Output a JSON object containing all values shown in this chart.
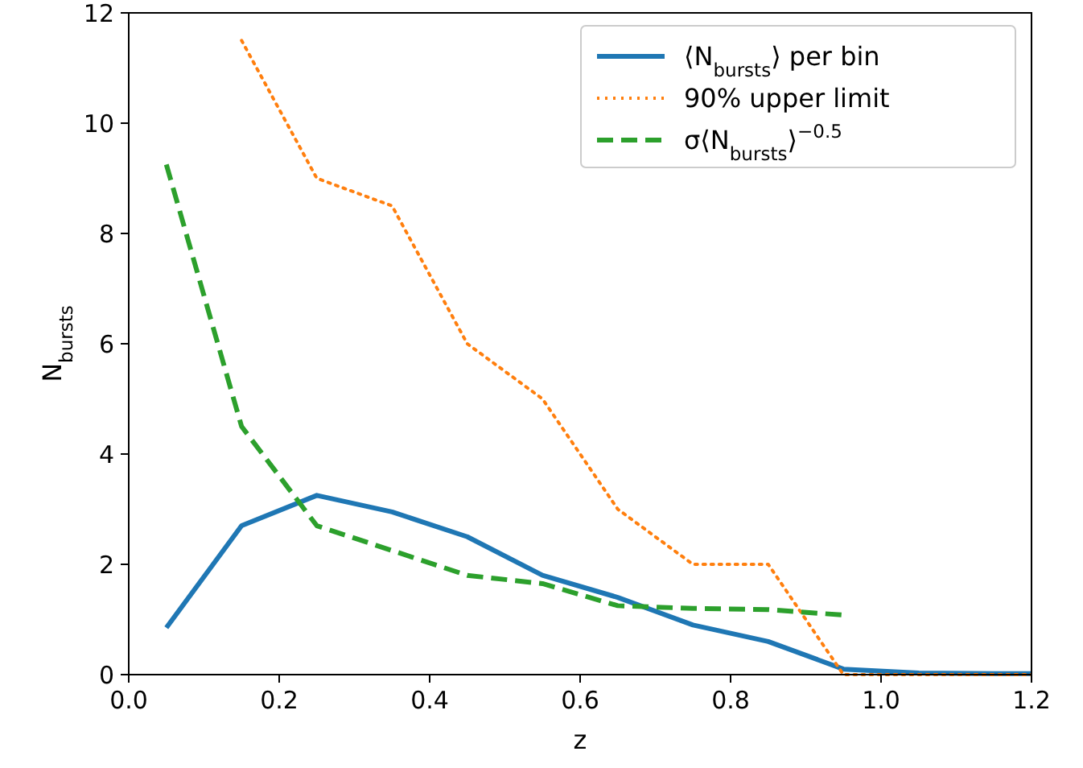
{
  "chart_data": {
    "type": "line",
    "xlabel": "z",
    "ylabel": "N$_{bursts}$",
    "xlim": [
      0,
      1.2
    ],
    "xticks": [
      {
        "value": 0,
        "label": "0.0"
      },
      0.2,
      0.4,
      0.6,
      0.8,
      {
        "value": 1,
        "label": "1.0"
      },
      1.2
    ],
    "ylim": [
      0,
      12
    ],
    "yticks": [
      0,
      2,
      4,
      6,
      8,
      10,
      12
    ],
    "grid": false,
    "legend": "top right",
    "series": [
      {
        "name": "⟨N$_{bursts}$⟩ per bin",
        "color": "#1f77b4",
        "line_style": "solid",
        "x": [
          0.05,
          0.15,
          0.25,
          0.35,
          0.45,
          0.55,
          0.65,
          0.75,
          0.85,
          0.95,
          1.05,
          1.15,
          1.2
        ],
        "values": [
          0.85,
          2.7,
          3.25,
          2.95,
          2.5,
          1.8,
          1.4,
          0.9,
          0.6,
          0.1,
          0.03,
          0.02,
          0.02
        ]
      },
      {
        "name": "90% upper limit",
        "color": "#ff7f0e",
        "line_style": "dotted",
        "x": [
          0.15,
          0.25,
          0.35,
          0.45,
          0.55,
          0.65,
          0.75,
          0.85,
          0.95,
          1.05,
          1.15,
          1.2
        ],
        "values": [
          11.5,
          9.0,
          8.5,
          6.0,
          5.0,
          3.0,
          2.0,
          2.0,
          0.0,
          0.0,
          0.0,
          0.0
        ]
      },
      {
        "name": "σ⟨N$_{bursts}$⟩$^{−0.5}$",
        "color": "#2ca02c",
        "line_style": "dashed",
        "x": [
          0.05,
          0.15,
          0.25,
          0.35,
          0.45,
          0.55,
          0.65,
          0.75,
          0.85,
          0.95
        ],
        "values": [
          9.25,
          4.5,
          2.7,
          2.25,
          1.8,
          1.65,
          1.25,
          1.2,
          1.18,
          1.08
        ]
      }
    ]
  }
}
